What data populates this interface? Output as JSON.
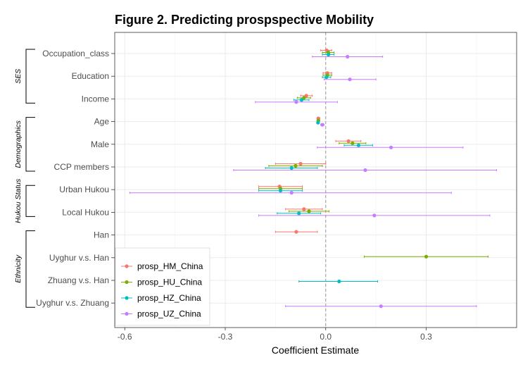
{
  "chart_data": {
    "type": "scatter",
    "title": "Figure 2. Predicting prospspective Mobility",
    "xlabel": "Coefficient Estimate",
    "ylabel": "",
    "xlim": [
      -0.63,
      0.57
    ],
    "x_ticks": [
      -0.6,
      -0.3,
      0.0,
      0.3
    ],
    "x_tick_labels": [
      "-0.6",
      "-0.3",
      "0.0",
      "0.3"
    ],
    "reference_line": 0,
    "grid": true,
    "legend_position": "bottom-left",
    "categories": [
      "Occupation_class",
      "Education",
      "Income",
      "Age",
      "Male",
      "CCP members",
      "Urban Hukou",
      "Local Hukou",
      "Han",
      "Uyghur v.s. Han",
      "Zhuang v.s. Han",
      "Uyghur v.s. Zhuang"
    ],
    "groups": [
      {
        "label": "SES",
        "rows": [
          "Occupation_class",
          "Education",
          "Income"
        ]
      },
      {
        "label": "Demographics",
        "rows": [
          "Age",
          "Male",
          "CCP members"
        ]
      },
      {
        "label": "Hukou Status",
        "rows": [
          "Urban Hukou",
          "Local Hukou"
        ]
      },
      {
        "label": "Ethnicity",
        "rows": [
          "Han",
          "Uyghur v.s. Han",
          "Zhuang v.s. Han",
          "Uyghur v.s. Zhuang"
        ]
      }
    ],
    "series": [
      {
        "name": "prosp_HM_China",
        "color": "#F8766D",
        "points": [
          {
            "category": "Occupation_class",
            "estimate": 0.003,
            "lower": -0.015,
            "upper": 0.018
          },
          {
            "category": "Education",
            "estimate": 0.005,
            "lower": -0.008,
            "upper": 0.018
          },
          {
            "category": "Income",
            "estimate": -0.058,
            "lower": -0.075,
            "upper": -0.04
          },
          {
            "category": "Age",
            "estimate": -0.022,
            "lower": -0.026,
            "upper": -0.018
          },
          {
            "category": "Male",
            "estimate": 0.068,
            "lower": 0.03,
            "upper": 0.105
          },
          {
            "category": "CCP members",
            "estimate": -0.075,
            "lower": -0.15,
            "upper": 0.0
          },
          {
            "category": "Urban Hukou",
            "estimate": -0.138,
            "lower": -0.2,
            "upper": -0.07
          },
          {
            "category": "Local Hukou",
            "estimate": -0.065,
            "lower": -0.12,
            "upper": -0.01
          },
          {
            "category": "Han",
            "estimate": -0.088,
            "lower": -0.15,
            "upper": -0.025
          }
        ]
      },
      {
        "name": "prosp_HU_China",
        "color": "#7CAE00",
        "points": [
          {
            "category": "Occupation_class",
            "estimate": 0.008,
            "lower": -0.01,
            "upper": 0.025
          },
          {
            "category": "Education",
            "estimate": 0.005,
            "lower": -0.008,
            "upper": 0.018
          },
          {
            "category": "Income",
            "estimate": -0.065,
            "lower": -0.085,
            "upper": -0.045
          },
          {
            "category": "Age",
            "estimate": -0.022,
            "lower": -0.026,
            "upper": -0.018
          },
          {
            "category": "Male",
            "estimate": 0.08,
            "lower": 0.04,
            "upper": 0.12
          },
          {
            "category": "CCP members",
            "estimate": -0.09,
            "lower": -0.17,
            "upper": -0.01
          },
          {
            "category": "Urban Hukou",
            "estimate": -0.135,
            "lower": -0.2,
            "upper": -0.07
          },
          {
            "category": "Local Hukou",
            "estimate": -0.05,
            "lower": -0.11,
            "upper": 0.01
          },
          {
            "category": "Uyghur v.s. Han",
            "estimate": 0.3,
            "lower": 0.115,
            "upper": 0.485
          }
        ]
      },
      {
        "name": "prosp_HZ_China",
        "color": "#00BFC4",
        "points": [
          {
            "category": "Occupation_class",
            "estimate": 0.008,
            "lower": -0.01,
            "upper": 0.025
          },
          {
            "category": "Education",
            "estimate": 0.002,
            "lower": -0.01,
            "upper": 0.015
          },
          {
            "category": "Income",
            "estimate": -0.072,
            "lower": -0.095,
            "upper": -0.05
          },
          {
            "category": "Age",
            "estimate": -0.023,
            "lower": -0.027,
            "upper": -0.019
          },
          {
            "category": "Male",
            "estimate": 0.098,
            "lower": 0.055,
            "upper": 0.14
          },
          {
            "category": "CCP members",
            "estimate": -0.102,
            "lower": -0.18,
            "upper": -0.025
          },
          {
            "category": "Urban Hukou",
            "estimate": -0.135,
            "lower": -0.2,
            "upper": -0.07
          },
          {
            "category": "Local Hukou",
            "estimate": -0.08,
            "lower": -0.145,
            "upper": -0.015
          },
          {
            "category": "Zhuang v.s. Han",
            "estimate": 0.04,
            "lower": -0.08,
            "upper": 0.155
          }
        ]
      },
      {
        "name": "prosp_UZ_China",
        "color": "#C77CFF",
        "points": [
          {
            "category": "Occupation_class",
            "estimate": 0.065,
            "lower": -0.04,
            "upper": 0.17
          },
          {
            "category": "Education",
            "estimate": 0.072,
            "lower": -0.005,
            "upper": 0.15
          },
          {
            "category": "Income",
            "estimate": -0.088,
            "lower": -0.21,
            "upper": 0.035
          },
          {
            "category": "Age",
            "estimate": -0.01,
            "lower": -0.015,
            "upper": -0.005
          },
          {
            "category": "Male",
            "estimate": 0.195,
            "lower": -0.025,
            "upper": 0.41
          },
          {
            "category": "CCP members",
            "estimate": 0.118,
            "lower": -0.275,
            "upper": 0.51
          },
          {
            "category": "Urban Hukou",
            "estimate": -0.102,
            "lower": -0.585,
            "upper": 0.375
          },
          {
            "category": "Local Hukou",
            "estimate": 0.145,
            "lower": -0.2,
            "upper": 0.49
          },
          {
            "category": "Uyghur v.s. Zhuang",
            "estimate": 0.165,
            "lower": -0.12,
            "upper": 0.45
          }
        ]
      }
    ]
  }
}
